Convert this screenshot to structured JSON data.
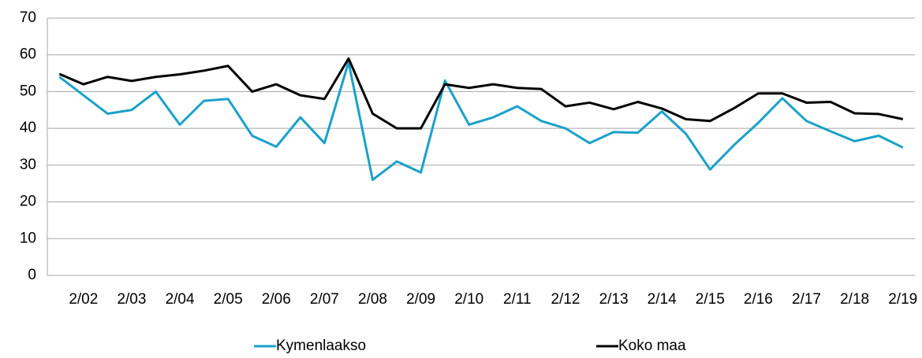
{
  "chart_data": {
    "type": "line",
    "categories": [
      null,
      "2/02",
      null,
      "2/03",
      null,
      "2/04",
      null,
      "2/05",
      null,
      "2/06",
      null,
      "2/07",
      null,
      "2/08",
      null,
      "2/09",
      null,
      "2/10",
      null,
      "2/11",
      null,
      "2/12",
      null,
      "2/13",
      null,
      "2/14",
      null,
      "2/15",
      null,
      "2/16",
      null,
      "2/17",
      null,
      "2/18",
      null,
      "2/19"
    ],
    "series": [
      {
        "name": "Kymenlaakso",
        "color": "#1ba1c9",
        "values": [
          54,
          49,
          44,
          45,
          50,
          41,
          47.5,
          48,
          38,
          35,
          43,
          36,
          58,
          26,
          31,
          28,
          53,
          41,
          43,
          46,
          42,
          40,
          36,
          39,
          38.8,
          44.6,
          38.5,
          28.8,
          35.5,
          41.5,
          48.2,
          42,
          39.2,
          36.5,
          38,
          34.8
        ]
      },
      {
        "name": "Koko maa",
        "color": "#000000",
        "values": [
          54.8,
          52,
          54,
          52.9,
          54,
          54.7,
          55.7,
          57,
          50,
          52,
          49,
          48,
          59,
          44,
          40,
          40,
          52,
          51,
          52,
          51,
          50.7,
          46,
          47,
          45.2,
          47.2,
          45.4,
          42.5,
          42,
          45.5,
          49.5,
          49.5,
          47,
          47.2,
          44.1,
          43.9,
          42.5
        ]
      }
    ],
    "ylim": [
      0,
      70
    ],
    "yticks": [
      0,
      10,
      20,
      30,
      40,
      50,
      60,
      70
    ],
    "grid": true,
    "legend": "bottom"
  }
}
